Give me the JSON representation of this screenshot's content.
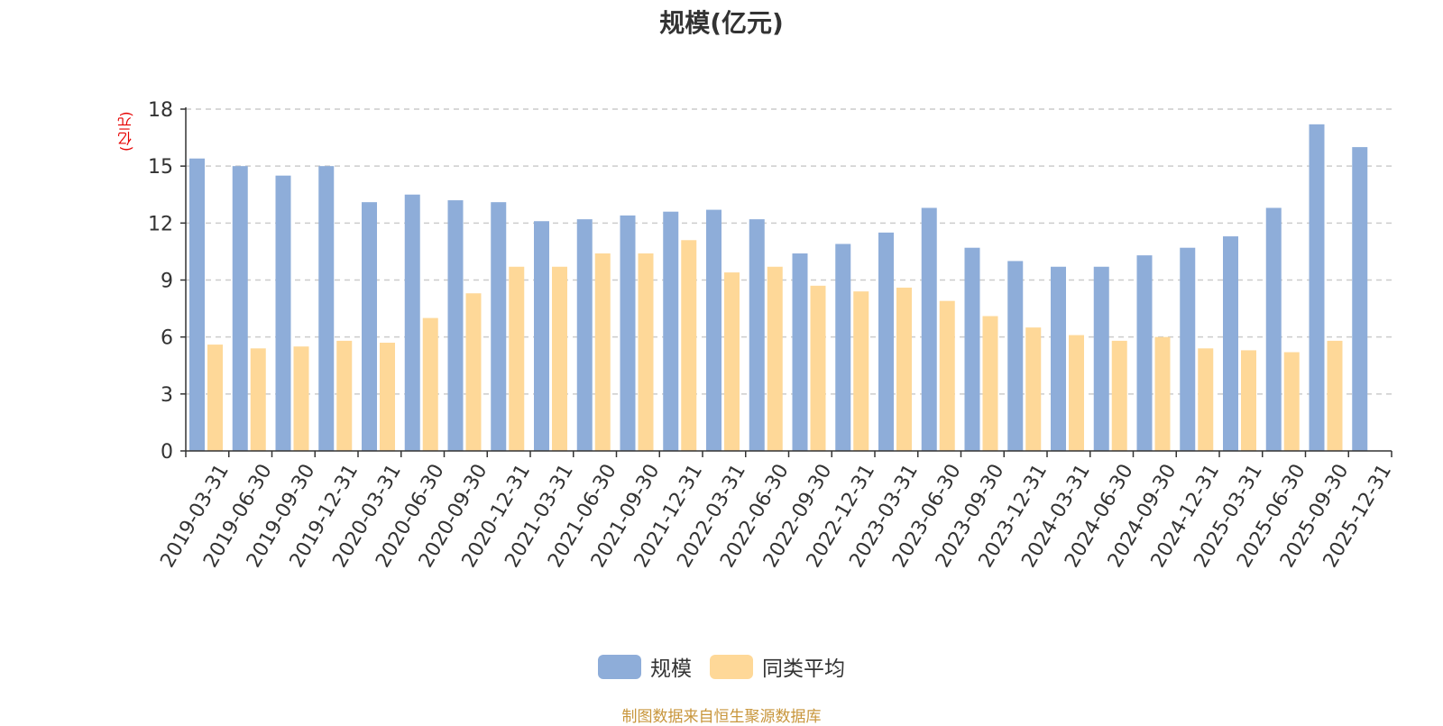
{
  "title": "规模(亿元)",
  "source_note": "制图数据来自恒生聚源数据库",
  "colors": {
    "series_primary": "#8eadd9",
    "series_secondary": "#fed898",
    "unit_label": "#e60000",
    "source_note": "#c8963c",
    "axis": "#333333",
    "grid": "#cccccc"
  },
  "chart_data": {
    "type": "bar",
    "title": "规模(亿元)",
    "ylabel": "(亿元)",
    "xlabel": "",
    "ylim": [
      0,
      18
    ],
    "yticks": [
      0,
      3,
      6,
      9,
      12,
      15,
      18
    ],
    "grid": true,
    "legend_position": "bottom-center",
    "categories": [
      "2019-03-31",
      "2019-06-30",
      "2019-09-30",
      "2019-12-31",
      "2020-03-31",
      "2020-06-30",
      "2020-09-30",
      "2020-12-31",
      "2021-03-31",
      "2021-06-30",
      "2021-09-30",
      "2021-12-31",
      "2022-03-31",
      "2022-06-30",
      "2022-09-30",
      "2022-12-31",
      "2023-03-31",
      "2023-06-30",
      "2023-09-30",
      "2023-12-31",
      "2024-03-31",
      "2024-06-30",
      "2024-09-30",
      "2024-12-31",
      "2025-03-31",
      "2025-06-30",
      "2025-09-30",
      "2025-12-31"
    ],
    "series": [
      {
        "name": "规模",
        "values": [
          15.4,
          15.0,
          14.5,
          15.0,
          13.1,
          13.5,
          13.2,
          13.1,
          12.1,
          12.2,
          12.4,
          12.6,
          12.7,
          12.2,
          10.4,
          10.9,
          11.5,
          12.8,
          10.7,
          10.0,
          9.7,
          9.7,
          10.3,
          10.7,
          11.3,
          12.8,
          17.2,
          16.0
        ]
      },
      {
        "name": "同类平均",
        "values": [
          5.6,
          5.4,
          5.5,
          5.8,
          5.7,
          7.0,
          8.3,
          9.7,
          9.7,
          10.4,
          10.4,
          11.1,
          9.4,
          9.7,
          8.7,
          8.4,
          8.6,
          7.9,
          7.1,
          6.5,
          6.1,
          5.8,
          6.0,
          5.4,
          5.3,
          5.2,
          5.8,
          null
        ]
      }
    ]
  }
}
